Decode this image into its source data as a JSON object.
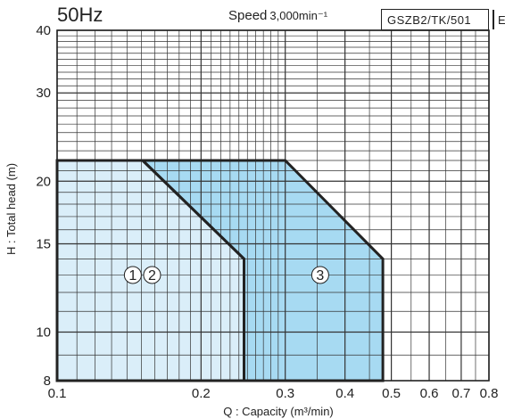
{
  "header": {
    "frequency": "50Hz",
    "speed_label": "Speed",
    "speed_value": "3,000min⁻¹",
    "model_code": "GSZB2/TK/501",
    "model_suffix": "E"
  },
  "chart_data": {
    "type": "area",
    "xlabel": "Q : Capacity (m³/min)",
    "ylabel": "H : Total head (m)",
    "xscale": "log",
    "yscale": "log",
    "xlim": [
      0.1,
      0.8
    ],
    "ylim": [
      8,
      40
    ],
    "xticks": [
      {
        "value": 0.1,
        "label": "0.1"
      },
      {
        "value": 0.2,
        "label": "0.2"
      },
      {
        "value": 0.3,
        "label": "0.3"
      },
      {
        "value": 0.4,
        "label": "0.4"
      },
      {
        "value": 0.5,
        "label": "0.5"
      },
      {
        "value": 0.6,
        "label": "0.6"
      },
      {
        "value": 0.7,
        "label": "0.7"
      },
      {
        "value": 0.8,
        "label": "0.8"
      }
    ],
    "yticks": [
      {
        "value": 8,
        "label": "8"
      },
      {
        "value": 10,
        "label": "10"
      },
      {
        "value": 15,
        "label": "15"
      },
      {
        "value": 20,
        "label": "20"
      },
      {
        "value": 30,
        "label": "30"
      },
      {
        "value": 40,
        "label": "40"
      }
    ],
    "grid": true,
    "series": [
      {
        "name": "①",
        "label_at": [
          0.144,
          13
        ],
        "color": "#daeef9",
        "points": [
          [
            0.1,
            22
          ],
          [
            0.151,
            22
          ],
          [
            0.246,
            14
          ],
          [
            0.246,
            8
          ],
          [
            0.1,
            8
          ]
        ]
      },
      {
        "name": "②",
        "label_at": [
          0.158,
          13
        ],
        "color": "#daeef9",
        "points": [
          [
            0.1,
            22
          ],
          [
            0.151,
            22
          ],
          [
            0.246,
            14
          ],
          [
            0.246,
            8
          ],
          [
            0.1,
            8
          ]
        ]
      },
      {
        "name": "③",
        "label_at": [
          0.355,
          13
        ],
        "color": "#a7daf2",
        "points": [
          [
            0.151,
            22
          ],
          [
            0.3,
            22
          ],
          [
            0.48,
            14
          ],
          [
            0.48,
            8
          ],
          [
            0.246,
            8
          ],
          [
            0.246,
            14
          ]
        ]
      }
    ]
  }
}
